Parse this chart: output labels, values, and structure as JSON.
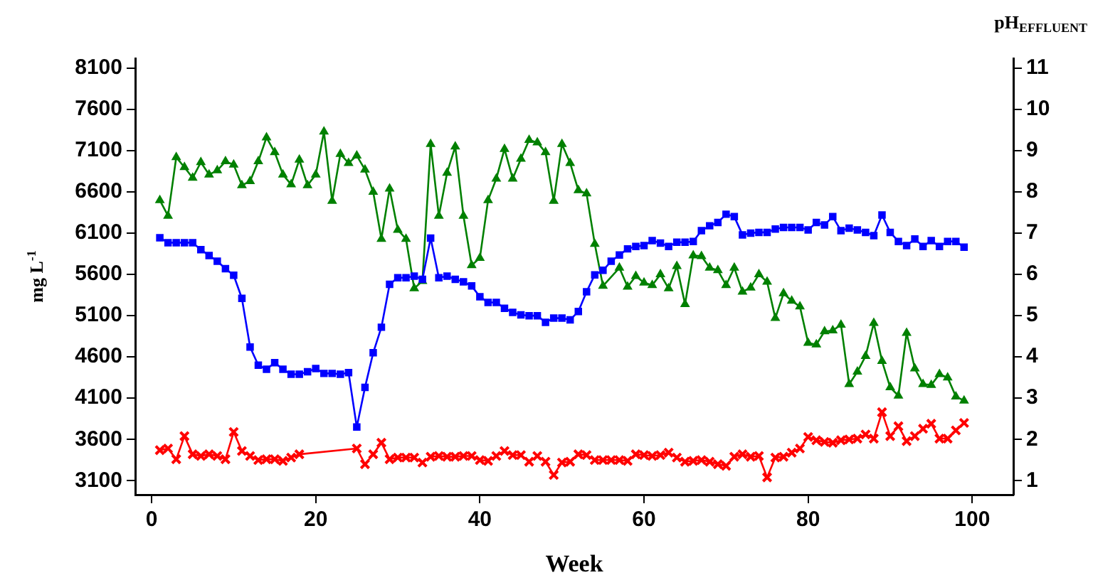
{
  "chart_data": {
    "type": "line",
    "xlabel": "Week",
    "ylabel": "mg L$^{-1}$",
    "y2label": "pH$_{EFFLUENT}$",
    "xlim": [
      -2,
      105
    ],
    "xticks": [
      0,
      20,
      40,
      60,
      80,
      100
    ],
    "ylim": [
      2930,
      8220
    ],
    "yticks": [
      3100,
      3600,
      4100,
      4600,
      5100,
      5600,
      6100,
      6600,
      7100,
      7600,
      8100
    ],
    "y2lim": [
      0.66,
      11.24
    ],
    "y2ticks": [
      1,
      2,
      3,
      4,
      5,
      6,
      7,
      8,
      9,
      10,
      11
    ],
    "grid": false,
    "legend": false,
    "line_style": "solid",
    "series": [
      {
        "color": "#0000ff",
        "marker": "square",
        "axis": "y2",
        "x": [
          1,
          2,
          3,
          4,
          5,
          6,
          7,
          8,
          9,
          10,
          11,
          12,
          13,
          14,
          15,
          16,
          17,
          18,
          19,
          20,
          21,
          22,
          23,
          24,
          25,
          26,
          27,
          28,
          29,
          30,
          31,
          32,
          33,
          34,
          35,
          36,
          37,
          38,
          39,
          40,
          41,
          42,
          43,
          44,
          45,
          46,
          47,
          48,
          49,
          50,
          51,
          52,
          53,
          54,
          55,
          56,
          57,
          58,
          59,
          60,
          61,
          62,
          63,
          64,
          65,
          66,
          67,
          68,
          69,
          70,
          71,
          72,
          73,
          74,
          75,
          76,
          77,
          78,
          79,
          80,
          81,
          82,
          83,
          84,
          85,
          86,
          87,
          88,
          89,
          90,
          91,
          92,
          93,
          94,
          95,
          96,
          97,
          98,
          99
        ],
        "values": [
          6.89,
          6.77,
          6.77,
          6.77,
          6.77,
          6.6,
          6.46,
          6.32,
          6.14,
          5.98,
          5.42,
          4.24,
          3.8,
          3.7,
          3.86,
          3.7,
          3.58,
          3.58,
          3.64,
          3.72,
          3.6,
          3.6,
          3.58,
          3.62,
          2.3,
          3.26,
          4.1,
          4.72,
          5.76,
          5.92,
          5.92,
          5.96,
          5.88,
          6.88,
          5.92,
          5.96,
          5.88,
          5.82,
          5.72,
          5.46,
          5.32,
          5.32,
          5.18,
          5.08,
          5.02,
          5.0,
          5.0,
          4.84,
          4.94,
          4.94,
          4.9,
          5.1,
          5.58,
          5.99,
          6.1,
          6.32,
          6.47,
          6.62,
          6.68,
          6.7,
          6.82,
          6.76,
          6.68,
          6.78,
          6.78,
          6.8,
          7.06,
          7.18,
          7.26,
          7.46,
          7.4,
          6.96,
          7.0,
          7.02,
          7.02,
          7.1,
          7.14,
          7.14,
          7.14,
          7.08,
          7.26,
          7.2,
          7.4,
          7.06,
          7.12,
          7.08,
          7.02,
          6.94,
          7.44,
          7.02,
          6.8,
          6.7,
          6.86,
          6.68,
          6.82,
          6.68,
          6.8,
          6.8,
          6.66
        ]
      },
      {
        "color": "#008000",
        "marker": "triangle",
        "x": [
          1,
          2,
          3,
          4,
          5,
          6,
          7,
          8,
          9,
          10,
          11,
          12,
          13,
          14,
          15,
          16,
          17,
          18,
          19,
          20,
          21,
          22,
          23,
          24,
          25,
          26,
          27,
          28,
          29,
          30,
          31,
          32,
          33,
          34,
          35,
          36,
          37,
          38,
          39,
          40,
          41,
          42,
          43,
          44,
          45,
          46,
          47,
          48,
          49,
          50,
          51,
          52,
          53,
          54,
          55,
          57,
          58,
          59,
          60,
          61,
          62,
          63,
          64,
          65,
          66,
          67,
          68,
          69,
          70,
          71,
          72,
          73,
          74,
          75,
          76,
          77,
          78,
          79,
          80,
          81,
          82,
          83,
          84,
          85,
          86,
          87,
          88,
          89,
          90,
          91,
          92,
          93,
          94,
          95,
          96,
          97,
          98,
          99
        ],
        "values": [
          6500,
          6310,
          7020,
          6900,
          6770,
          6960,
          6810,
          6860,
          6970,
          6930,
          6680,
          6730,
          6970,
          7260,
          7080,
          6810,
          6690,
          6990,
          6680,
          6810,
          7330,
          6490,
          7060,
          6950,
          7040,
          6870,
          6600,
          6030,
          6640,
          6140,
          6030,
          5430,
          5520,
          7180,
          6310,
          6830,
          7150,
          6310,
          5710,
          5800,
          6500,
          6760,
          7120,
          6760,
          7000,
          7230,
          7200,
          7080,
          6490,
          7180,
          6950,
          6620,
          6580,
          5970,
          5460,
          5680,
          5450,
          5580,
          5500,
          5470,
          5600,
          5430,
          5700,
          5240,
          5830,
          5820,
          5680,
          5650,
          5470,
          5680,
          5390,
          5440,
          5600,
          5510,
          5070,
          5370,
          5280,
          5210,
          4770,
          4750,
          4910,
          4920,
          4990,
          4270,
          4420,
          4610,
          5010,
          4550,
          4230,
          4130,
          4890,
          4460,
          4270,
          4260,
          4390,
          4350,
          4120,
          4070
        ]
      },
      {
        "color": "#ff0000",
        "marker": "cross",
        "x": [
          1,
          2,
          3,
          4,
          5,
          6,
          7,
          8,
          9,
          10,
          11,
          12,
          13,
          14,
          15,
          16,
          17,
          18,
          25,
          26,
          27,
          28,
          29,
          30,
          31,
          32,
          33,
          34,
          35,
          36,
          37,
          38,
          39,
          40,
          41,
          42,
          43,
          44,
          45,
          46,
          47,
          48,
          49,
          50,
          51,
          52,
          53,
          54,
          55,
          56,
          57,
          58,
          59,
          60,
          61,
          62,
          63,
          64,
          65,
          66,
          67,
          68,
          69,
          70,
          71,
          72,
          73,
          74,
          75,
          76,
          77,
          78,
          79,
          80,
          81,
          82,
          83,
          84,
          85,
          86,
          87,
          88,
          89,
          90,
          91,
          92,
          93,
          94,
          95,
          96,
          97,
          98,
          99
        ],
        "values": [
          3470,
          3490,
          3360,
          3640,
          3420,
          3400,
          3420,
          3400,
          3360,
          3690,
          3460,
          3400,
          3350,
          3360,
          3360,
          3340,
          3380,
          3420,
          3490,
          3300,
          3420,
          3560,
          3360,
          3380,
          3380,
          3380,
          3320,
          3390,
          3400,
          3390,
          3390,
          3400,
          3400,
          3350,
          3340,
          3400,
          3460,
          3410,
          3410,
          3330,
          3400,
          3330,
          3170,
          3320,
          3330,
          3420,
          3410,
          3350,
          3350,
          3350,
          3350,
          3340,
          3420,
          3410,
          3400,
          3410,
          3440,
          3380,
          3330,
          3340,
          3350,
          3330,
          3300,
          3280,
          3390,
          3420,
          3390,
          3400,
          3140,
          3380,
          3390,
          3440,
          3490,
          3630,
          3590,
          3570,
          3560,
          3590,
          3600,
          3610,
          3660,
          3610,
          3930,
          3640,
          3760,
          3580,
          3640,
          3730,
          3790,
          3610,
          3610,
          3710,
          3800
        ]
      }
    ]
  }
}
